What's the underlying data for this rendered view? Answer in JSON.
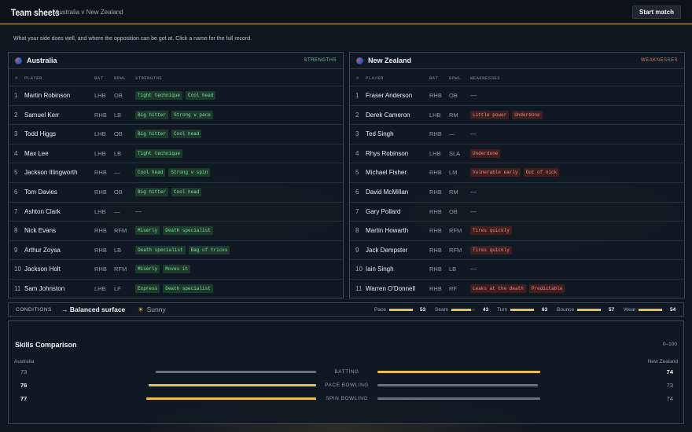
{
  "app": {
    "title": "Team sheets",
    "breadcrumb": "Australia v New Zealand",
    "start_label": "Start match"
  },
  "subtitle": "What your side does well, and where the opposition can be got at. Click a name for the full record.",
  "columns": {
    "num": "#",
    "player": "PLAYER",
    "bat": "BAT",
    "bowl": "BOWL",
    "strengths": "STRENGTHS",
    "weaknesses": "WEAKNESSES"
  },
  "australia": {
    "name": "Australia",
    "tag": "STRENGTHS",
    "players": [
      {
        "n": "1",
        "name": "Martin Robinson",
        "bat": "LHB",
        "bowl": "OB",
        "traits": [
          "Tight technique",
          "Cool head"
        ]
      },
      {
        "n": "2",
        "name": "Samuel Kerr",
        "bat": "RHB",
        "bowl": "LB",
        "traits": [
          "Big hitter",
          "Strong v pace"
        ]
      },
      {
        "n": "3",
        "name": "Todd Higgs",
        "bat": "LHB",
        "bowl": "OB",
        "traits": [
          "Big hitter",
          "Cool head"
        ]
      },
      {
        "n": "4",
        "name": "Max Lee",
        "bat": "LHB",
        "bowl": "LB",
        "traits": [
          "Tight technique"
        ]
      },
      {
        "n": "5",
        "name": "Jackson Illingworth",
        "bat": "RHB",
        "bowl": "—",
        "traits": [
          "Cool head",
          "Strong v spin"
        ]
      },
      {
        "n": "6",
        "name": "Tom Davies",
        "bat": "RHB",
        "bowl": "OB",
        "traits": [
          "Big hitter",
          "Cool head"
        ]
      },
      {
        "n": "7",
        "name": "Ashton Clark",
        "bat": "LHB",
        "bowl": "—",
        "traits": []
      },
      {
        "n": "8",
        "name": "Nick Evans",
        "bat": "RHB",
        "bowl": "RFM",
        "traits": [
          "Miserly",
          "Death specialist"
        ]
      },
      {
        "n": "9",
        "name": "Arthur Zoysa",
        "bat": "RHB",
        "bowl": "LB",
        "traits": [
          "Death specialist",
          "Bag of tricks"
        ]
      },
      {
        "n": "10",
        "name": "Jackson Holt",
        "bat": "RHB",
        "bowl": "RFM",
        "traits": [
          "Miserly",
          "Moves it"
        ]
      },
      {
        "n": "11",
        "name": "Sam Johnston",
        "bat": "LHB",
        "bowl": "LF",
        "traits": [
          "Express",
          "Death specialist"
        ]
      }
    ]
  },
  "newzealand": {
    "name": "New Zealand",
    "tag": "WEAKNESSES",
    "players": [
      {
        "n": "1",
        "name": "Fraser Anderson",
        "bat": "RHB",
        "bowl": "OB",
        "traits": []
      },
      {
        "n": "2",
        "name": "Derek Cameron",
        "bat": "LHB",
        "bowl": "RM",
        "traits": [
          "Little power",
          "Underdone"
        ]
      },
      {
        "n": "3",
        "name": "Ted Singh",
        "bat": "RHB",
        "bowl": "—",
        "traits": []
      },
      {
        "n": "4",
        "name": "Rhys Robinson",
        "bat": "LHB",
        "bowl": "SLA",
        "traits": [
          "Underdone"
        ]
      },
      {
        "n": "5",
        "name": "Michael Fisher",
        "bat": "RHB",
        "bowl": "LM",
        "traits": [
          "Vulnerable early",
          "Out of nick"
        ]
      },
      {
        "n": "6",
        "name": "David McMillan",
        "bat": "RHB",
        "bowl": "RM",
        "traits": []
      },
      {
        "n": "7",
        "name": "Gary Pollard",
        "bat": "RHB",
        "bowl": "OB",
        "traits": []
      },
      {
        "n": "8",
        "name": "Martin Howarth",
        "bat": "RHB",
        "bowl": "RFM",
        "traits": [
          "Tires quickly"
        ]
      },
      {
        "n": "9",
        "name": "Jack Dempster",
        "bat": "RHB",
        "bowl": "RFM",
        "traits": [
          "Tires quickly"
        ]
      },
      {
        "n": "10",
        "name": "Iain Singh",
        "bat": "RHB",
        "bowl": "LB",
        "traits": []
      },
      {
        "n": "11",
        "name": "Warren O'Donnell",
        "bat": "RHB",
        "bowl": "RF",
        "traits": [
          "Leaks at the death",
          "Predictable"
        ]
      }
    ]
  },
  "empty_trait": "—",
  "conditions": {
    "label": "CONDITIONS",
    "arrow": "→",
    "surface": "Balanced surface",
    "weather_icon": "sun-icon",
    "weather": "Sunny",
    "meters": [
      {
        "label": "Pace",
        "value": 53
      },
      {
        "label": "Seam",
        "value": 43
      },
      {
        "label": "Turn",
        "value": 63
      },
      {
        "label": "Bounce",
        "value": 57
      },
      {
        "label": "Wear",
        "value": 54
      }
    ]
  },
  "skills": {
    "title": "Skills Comparison",
    "range": "0–100",
    "left_team": "Australia",
    "right_team": "New Zealand",
    "rows": [
      {
        "category": "BATTING",
        "left": 73,
        "right": 74
      },
      {
        "category": "PACE BOWLING",
        "left": 76,
        "right": 73
      },
      {
        "category": "SPIN BOWLING",
        "left": 77,
        "right": 74
      }
    ]
  },
  "colors": {
    "accent": "#e9c04f",
    "strength_chip": "#7ee0a2",
    "weakness_chip": "#f08a7c",
    "strength_tag": "#5fcf8e",
    "weakness_tag": "#e07b5c"
  }
}
